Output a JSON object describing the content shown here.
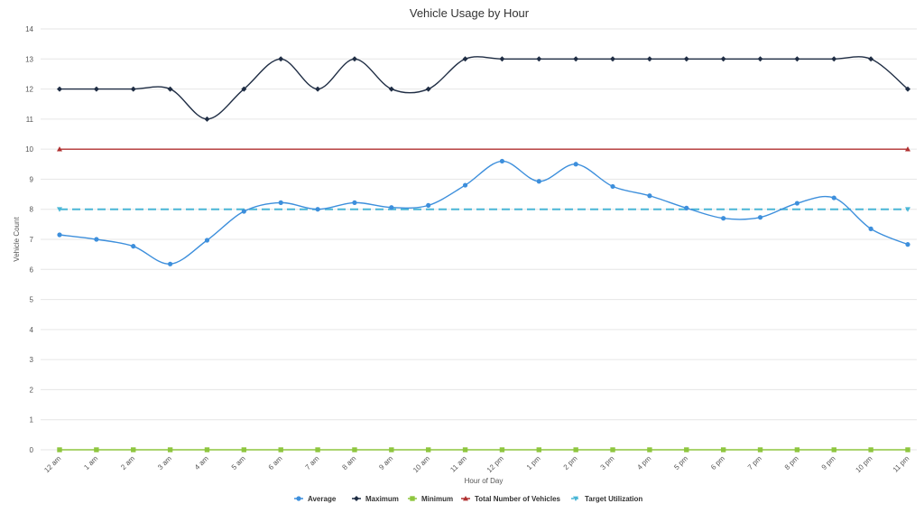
{
  "chart_data": {
    "type": "line",
    "title": "Vehicle Usage by Hour",
    "xlabel": "Hour of Day",
    "ylabel": "Vehicle Count",
    "ylim": [
      0,
      14
    ],
    "yticks": [
      0,
      1,
      2,
      3,
      4,
      5,
      6,
      7,
      8,
      9,
      10,
      11,
      12,
      13,
      14
    ],
    "grid": true,
    "legend_position": "bottom",
    "categories": [
      "12 am",
      "1 am",
      "2 am",
      "3 am",
      "4 am",
      "5 am",
      "6 am",
      "7 am",
      "8 am",
      "9 am",
      "10 am",
      "11 am",
      "12 pm",
      "1 pm",
      "2 pm",
      "3 pm",
      "4 pm",
      "5 pm",
      "6 pm",
      "7 pm",
      "8 pm",
      "9 pm",
      "10 pm",
      "11 pm"
    ],
    "series": [
      {
        "name": "Average",
        "color": "#3d8fdc",
        "marker": "circle",
        "style": "smooth",
        "values": [
          7.15,
          7.0,
          6.77,
          6.18,
          6.97,
          7.93,
          8.22,
          8.0,
          8.22,
          8.06,
          8.13,
          8.8,
          9.6,
          8.93,
          9.5,
          8.76,
          8.45,
          8.04,
          7.7,
          7.73,
          8.2,
          8.38,
          7.35,
          6.83
        ]
      },
      {
        "name": "Maximum",
        "color": "#1f2d44",
        "marker": "diamond",
        "style": "smooth",
        "values": [
          12,
          12,
          12,
          12,
          11,
          12,
          13,
          12,
          13,
          12,
          12,
          13,
          13,
          13,
          13,
          13,
          13,
          13,
          13,
          13,
          13,
          13,
          13,
          12
        ]
      },
      {
        "name": "Minimum",
        "color": "#8ec63f",
        "marker": "square",
        "style": "line",
        "values": [
          0,
          0,
          0,
          0,
          0,
          0,
          0,
          0,
          0,
          0,
          0,
          0,
          0,
          0,
          0,
          0,
          0,
          0,
          0,
          0,
          0,
          0,
          0,
          0
        ]
      },
      {
        "name": "Total Number of Vehicles",
        "color": "#b03030",
        "marker": "triangle-up",
        "style": "line",
        "first_last_markers_only": true,
        "values": [
          10,
          10,
          10,
          10,
          10,
          10,
          10,
          10,
          10,
          10,
          10,
          10,
          10,
          10,
          10,
          10,
          10,
          10,
          10,
          10,
          10,
          10,
          10,
          10
        ]
      },
      {
        "name": "Target Utilization",
        "color": "#49b6d6",
        "marker": "triangle-down",
        "style": "dashed",
        "first_last_markers_only": true,
        "values": [
          8,
          8,
          8,
          8,
          8,
          8,
          8,
          8,
          8,
          8,
          8,
          8,
          8,
          8,
          8,
          8,
          8,
          8,
          8,
          8,
          8,
          8,
          8,
          8
        ]
      }
    ]
  }
}
